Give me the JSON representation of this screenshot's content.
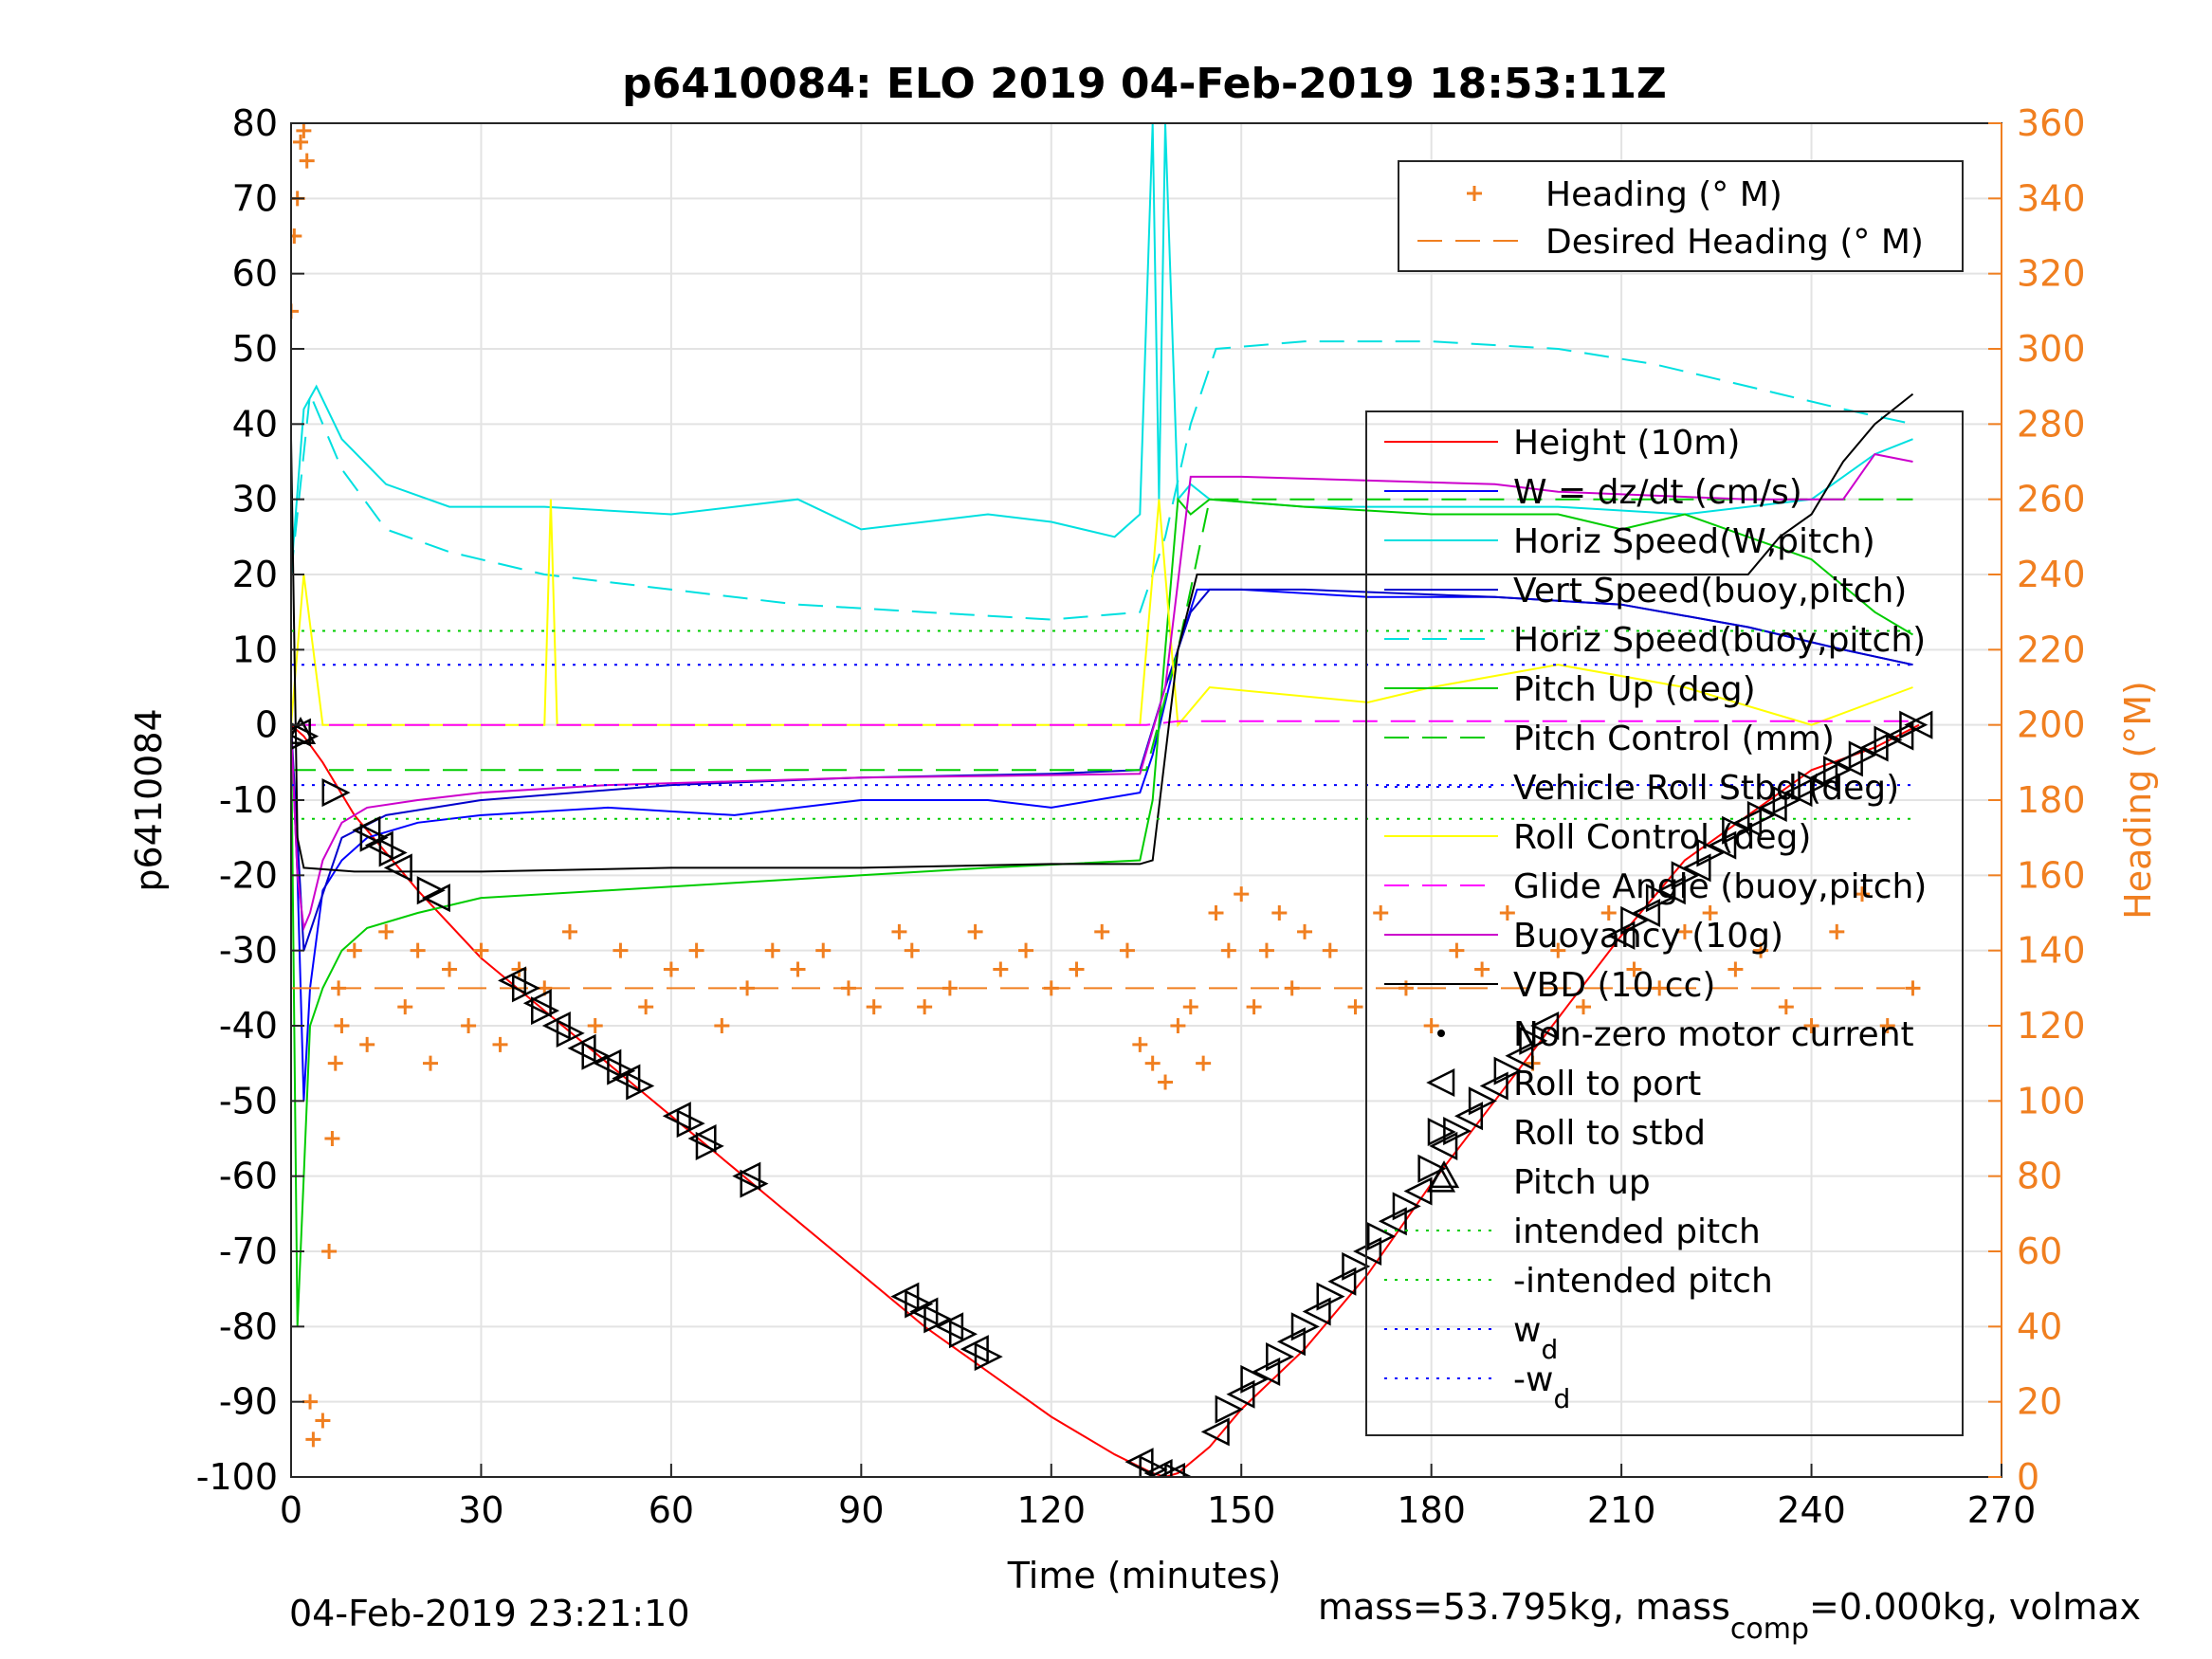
{
  "chart_data": {
    "type": "line",
    "title": "p6410084: ELO 2019 04-Feb-2019 18:53:11Z",
    "xlabel": "Time (minutes)",
    "ylabel": "p6410084",
    "y2label": "Heading (°M)",
    "xlim": [
      0,
      270
    ],
    "ylim": [
      -100,
      80
    ],
    "y2lim": [
      0,
      360
    ],
    "xticks": [
      0,
      30,
      60,
      90,
      120,
      150,
      180,
      210,
      240,
      270
    ],
    "yticks": [
      80,
      70,
      60,
      50,
      40,
      30,
      20,
      10,
      0,
      -10,
      -20,
      -30,
      -40,
      -50,
      -60,
      -70,
      -80,
      -90,
      -100
    ],
    "y2ticks": [
      360,
      340,
      320,
      300,
      280,
      260,
      240,
      220,
      200,
      180,
      160,
      140,
      120,
      100,
      80,
      60,
      40,
      20,
      0
    ],
    "grid": true,
    "legends": [
      {
        "placement": "top-right",
        "entries": [
          {
            "label": "Heading (° M)",
            "color": "#f07f20",
            "style": "plus"
          },
          {
            "label": "Desired Heading (° M)",
            "color": "#f07f20",
            "style": "dash"
          }
        ]
      },
      {
        "placement": "right",
        "entries": [
          {
            "label": "Height (10m)",
            "color": "#ff0000",
            "style": "solid"
          },
          {
            "label": "W = dz/dt (cm/s)",
            "color": "#0000ff",
            "style": "solid"
          },
          {
            "label": "Horiz Speed(W,pitch)",
            "color": "#00e0e0",
            "style": "solid"
          },
          {
            "label": "Vert Speed(buoy,pitch)",
            "color": "#0000cc",
            "style": "solid"
          },
          {
            "label": "Horiz Speed(buoy,pitch)",
            "color": "#00e0e0",
            "style": "dash"
          },
          {
            "label": "Pitch Up (deg)",
            "color": "#00cc00",
            "style": "solid"
          },
          {
            "label": "Pitch Control (mm)",
            "color": "#00cc00",
            "style": "dash"
          },
          {
            "label": "Vehicle Roll Stbd (deg)",
            "color": "#0000ff",
            "style": "dot"
          },
          {
            "label": "Roll Control (deg)",
            "color": "#ffff00",
            "style": "solid"
          },
          {
            "label": "Glide Angle (buoy,pitch)",
            "color": "#ff00ff",
            "style": "dash"
          },
          {
            "label": "Buoyancy (10g)",
            "color": "#cc00cc",
            "style": "solid"
          },
          {
            "label": "VBD (10 cc)",
            "color": "#000000",
            "style": "solid"
          },
          {
            "label": "Non-zero motor current",
            "color": "#000000",
            "style": "point"
          },
          {
            "label": "Roll to port",
            "color": "#000000",
            "style": "tri-left"
          },
          {
            "label": "Roll to stbd",
            "color": "#000000",
            "style": "tri-right"
          },
          {
            "label": "Pitch up",
            "color": "#000000",
            "style": "tri-up"
          },
          {
            "label": "intended pitch",
            "color": "#00cc00",
            "style": "dot"
          },
          {
            "label": "-intended pitch",
            "color": "#00cc00",
            "style": "dot"
          },
          {
            "label": "w",
            "sub": "d",
            "color": "#0000ff",
            "style": "dot"
          },
          {
            "label": "-w",
            "sub": "d",
            "color": "#0000ff",
            "style": "dot"
          }
        ]
      }
    ],
    "series": [
      {
        "name": "Height (10m)",
        "color": "#ff0000",
        "x": [
          0,
          2,
          5,
          10,
          20,
          30,
          40,
          50,
          60,
          70,
          80,
          90,
          100,
          110,
          120,
          130,
          136,
          138,
          140,
          145,
          150,
          160,
          170,
          180,
          190,
          200,
          210,
          220,
          230,
          240,
          250,
          257
        ],
        "y": [
          0,
          -1.5,
          -5,
          -12,
          -22,
          -31,
          -38,
          -45,
          -52,
          -59,
          -66,
          -73,
          -80,
          -86,
          -92,
          -97,
          -99.5,
          -100,
          -99.5,
          -96,
          -91,
          -83,
          -73,
          -61,
          -50,
          -39,
          -28,
          -18,
          -12,
          -6,
          -3,
          0
        ]
      },
      {
        "name": "W = dz/dt (cm/s)",
        "color": "#0000ff",
        "x": [
          0,
          1,
          2,
          3,
          5,
          8,
          12,
          20,
          30,
          50,
          70,
          90,
          110,
          120,
          134,
          136,
          140,
          143,
          150,
          170,
          190,
          210,
          230,
          245,
          256
        ],
        "y": [
          0,
          -20,
          -50,
          -35,
          -22,
          -18,
          -15,
          -13,
          -12,
          -11,
          -12,
          -10,
          -10,
          -11,
          -9,
          -4,
          10,
          18,
          18,
          17,
          17,
          16,
          13,
          10,
          8
        ]
      },
      {
        "name": "Horiz Speed(W,pitch)",
        "color": "#00e0e0",
        "x": [
          0,
          2,
          4,
          8,
          15,
          25,
          40,
          60,
          80,
          90,
          100,
          110,
          120,
          130,
          134,
          136,
          137,
          138,
          140,
          142,
          145,
          160,
          180,
          200,
          220,
          240,
          250,
          256
        ],
        "y": [
          20,
          42,
          45,
          38,
          32,
          29,
          29,
          28,
          30,
          26,
          27,
          28,
          27,
          25,
          28,
          80,
          30,
          80,
          30,
          32,
          30,
          29,
          29,
          29,
          28,
          30,
          36,
          38
        ]
      },
      {
        "name": "Vert Speed(buoy,pitch)",
        "color": "#0000cc",
        "x": [
          0,
          2,
          4,
          8,
          15,
          30,
          60,
          90,
          120,
          134,
          138,
          142,
          145,
          160,
          190,
          210,
          230,
          245,
          256
        ],
        "y": [
          0,
          -30,
          -25,
          -15,
          -12,
          -10,
          -8,
          -7,
          -6.5,
          -6,
          5,
          15,
          18,
          18,
          17,
          16,
          13,
          10,
          8
        ]
      },
      {
        "name": "Horiz Speed(buoy,pitch)",
        "color": "#00e0e0",
        "dash": true,
        "x": [
          0,
          3,
          8,
          15,
          25,
          40,
          60,
          80,
          100,
          120,
          134,
          138,
          142,
          146,
          160,
          180,
          200,
          215,
          225,
          235,
          245,
          256
        ],
        "y": [
          20,
          44,
          34,
          26,
          23,
          20,
          18,
          16,
          15,
          14,
          15,
          25,
          40,
          50,
          51,
          51,
          50,
          48,
          46,
          44,
          42,
          40
        ]
      },
      {
        "name": "Pitch Up (deg)",
        "color": "#00cc00",
        "x": [
          0,
          1,
          2,
          3,
          5,
          8,
          12,
          20,
          30,
          50,
          70,
          90,
          110,
          134,
          136,
          138,
          140,
          142,
          145,
          160,
          180,
          200,
          210,
          220,
          230,
          240,
          250,
          256
        ],
        "y": [
          0,
          -80,
          -60,
          -40,
          -35,
          -30,
          -27,
          -25,
          -23,
          -22,
          -21,
          -20,
          -19,
          -18,
          -10,
          10,
          30,
          28,
          30,
          29,
          28,
          28,
          26,
          28,
          25,
          22,
          15,
          12
        ]
      },
      {
        "name": "Pitch Control (mm)",
        "color": "#00cc00",
        "dash": true,
        "x": [
          0,
          135,
          140,
          145,
          256
        ],
        "y": [
          -6,
          -6,
          10,
          30,
          30
        ]
      },
      {
        "name": "Roll Control (deg)",
        "color": "#ffff00",
        "x": [
          0,
          2,
          5,
          10,
          20,
          40,
          41,
          42,
          60,
          80,
          100,
          120,
          134,
          137,
          140,
          145,
          170,
          180,
          200,
          220,
          240,
          256
        ],
        "y": [
          0,
          20,
          0,
          0,
          0,
          0,
          30,
          0,
          0,
          0,
          0,
          0,
          0,
          30,
          0,
          5,
          3,
          5,
          8,
          5,
          0,
          5
        ]
      },
      {
        "name": "Glide Angle (buoy,pitch)",
        "color": "#ff00ff",
        "dash": true,
        "x": [
          0,
          135,
          140,
          145,
          256
        ],
        "y": [
          0,
          0,
          0.5,
          0.5,
          0.5
        ]
      },
      {
        "name": "Buoyancy (10g)",
        "color": "#cc00cc",
        "x": [
          0,
          1,
          2,
          3,
          5,
          8,
          12,
          20,
          30,
          50,
          70,
          90,
          110,
          134,
          138,
          142,
          150,
          190,
          200,
          230,
          245,
          250,
          256
        ],
        "y": [
          0,
          -20,
          -27,
          -25,
          -18,
          -13,
          -11,
          -10,
          -9,
          -8,
          -7.5,
          -7,
          -6.8,
          -6.5,
          5,
          33,
          33,
          32,
          31,
          30,
          30,
          36,
          35
        ]
      },
      {
        "name": "VBD (10 cc)",
        "color": "#000000",
        "x": [
          0,
          1,
          2,
          10,
          30,
          60,
          90,
          120,
          134,
          136,
          140,
          143,
          150,
          190,
          200,
          230,
          235,
          240,
          245,
          250,
          256
        ],
        "y": [
          38,
          -15,
          -19,
          -19.5,
          -19.5,
          -19,
          -19,
          -18.5,
          -18.5,
          -18,
          10,
          20,
          20,
          20,
          20,
          20,
          25,
          28,
          35,
          40,
          44
        ]
      },
      {
        "name": "intended pitch",
        "color": "#00cc00",
        "dotted": true,
        "x": [
          0,
          256
        ],
        "y": [
          12.5,
          12.5
        ]
      },
      {
        "name": "-intended pitch",
        "color": "#00cc00",
        "dotted": true,
        "x": [
          0,
          256
        ],
        "y": [
          -12.5,
          -12.5
        ]
      },
      {
        "name": "w_d",
        "color": "#0000ff",
        "dotted": true,
        "x": [
          0,
          256
        ],
        "y": [
          8,
          8
        ]
      },
      {
        "name": "-w_d",
        "color": "#0000ff",
        "dotted": true,
        "x": [
          0,
          256
        ],
        "y": [
          -8,
          -8
        ]
      }
    ],
    "heading": {
      "name": "Heading (° M)",
      "color": "#f07f20",
      "x": [
        0,
        0.5,
        1,
        1.5,
        2,
        2.5,
        3,
        3.5,
        5,
        6,
        6.5,
        7,
        7.5,
        8,
        10,
        12,
        15,
        18,
        20,
        22,
        25,
        28,
        30,
        33,
        36,
        40,
        44,
        48,
        52,
        56,
        60,
        64,
        68,
        72,
        76,
        80,
        84,
        88,
        92,
        96,
        98,
        100,
        104,
        108,
        112,
        116,
        120,
        124,
        128,
        132,
        134,
        136,
        138,
        140,
        142,
        144,
        146,
        148,
        150,
        152,
        154,
        156,
        158,
        160,
        164,
        168,
        172,
        176,
        180,
        184,
        188,
        192,
        196,
        200,
        204,
        208,
        212,
        216,
        220,
        224,
        228,
        232,
        236,
        240,
        244,
        248,
        252,
        256
      ],
      "y": [
        310,
        330,
        340,
        355,
        358,
        350,
        20,
        10,
        15,
        60,
        90,
        110,
        130,
        120,
        140,
        115,
        145,
        125,
        140,
        110,
        135,
        120,
        140,
        115,
        135,
        130,
        145,
        120,
        140,
        125,
        135,
        140,
        120,
        130,
        140,
        135,
        140,
        130,
        125,
        145,
        140,
        125,
        130,
        145,
        135,
        140,
        130,
        135,
        145,
        140,
        115,
        110,
        105,
        120,
        125,
        110,
        150,
        140,
        155,
        125,
        140,
        150,
        130,
        145,
        140,
        125,
        150,
        130,
        120,
        140,
        135,
        150,
        110,
        140,
        125,
        150,
        135,
        130,
        145,
        150,
        135,
        140,
        125,
        120,
        145,
        155,
        120,
        130
      ]
    },
    "desired_heading": {
      "name": "Desired Heading (° M)",
      "color": "#f07f20",
      "x": [
        0,
        256
      ],
      "y": [
        130,
        130
      ]
    },
    "markers": {
      "roll_to_port": {
        "x": [
          1,
          12,
          14,
          17,
          23,
          35,
          39,
          42,
          46,
          50,
          53,
          61,
          65,
          72,
          97,
          100,
          104,
          108,
          134,
          137,
          139,
          146,
          150,
          154,
          158,
          162,
          166,
          170,
          174,
          178,
          182,
          186,
          190,
          194,
          198,
          210,
          214,
          218,
          222,
          226,
          230,
          234,
          238,
          242,
          246,
          250,
          254,
          257
        ],
        "y": [
          -1,
          -14,
          -16,
          -19,
          -23,
          -34,
          -37,
          -40,
          -43,
          -45,
          -47,
          -52,
          -55,
          -60,
          -76,
          -78,
          -80,
          -83,
          -98,
          -99.5,
          -100,
          -94,
          -89,
          -86,
          -82,
          -78,
          -74,
          -70,
          -66,
          -62,
          -56,
          -52,
          -48,
          -44,
          -40,
          -28,
          -25,
          -22,
          -19,
          -16,
          -13,
          -11,
          -9,
          -7,
          -5,
          -3,
          -1.5,
          0
        ]
      },
      "roll_to_stbd": {
        "x": [
          2,
          7,
          13,
          16,
          22,
          37,
          40,
          44,
          48,
          52,
          55,
          63,
          66,
          73,
          99,
          102,
          106,
          110,
          136,
          140,
          148,
          152,
          156,
          160,
          164,
          168,
          172,
          176,
          180,
          184,
          188,
          192,
          196,
          212,
          216,
          220,
          224,
          228,
          232,
          236,
          240,
          244,
          248,
          252,
          256
        ],
        "y": [
          -1.5,
          -9,
          -15,
          -17,
          -22,
          -35,
          -38,
          -41,
          -44,
          -46,
          -48,
          -53,
          -56,
          -61,
          -77,
          -79,
          -81,
          -84,
          -99,
          -100,
          -91,
          -87,
          -84,
          -80,
          -76,
          -72,
          -68,
          -64,
          -59,
          -54,
          -50,
          -46,
          -42,
          -26,
          -23,
          -20,
          -17,
          -14,
          -12,
          -10,
          -8,
          -6,
          -4,
          -2,
          0
        ]
      },
      "pitch_up": {
        "x": [
          1.5,
          182
        ],
        "y": [
          -1,
          -60
        ]
      }
    },
    "footer_left": "04-Feb-2019 23:21:10",
    "footer_right_a": "mass=53.795kg, mass",
    "footer_right_sub": "comp",
    "footer_right_b": "=0.000kg, volmax"
  }
}
